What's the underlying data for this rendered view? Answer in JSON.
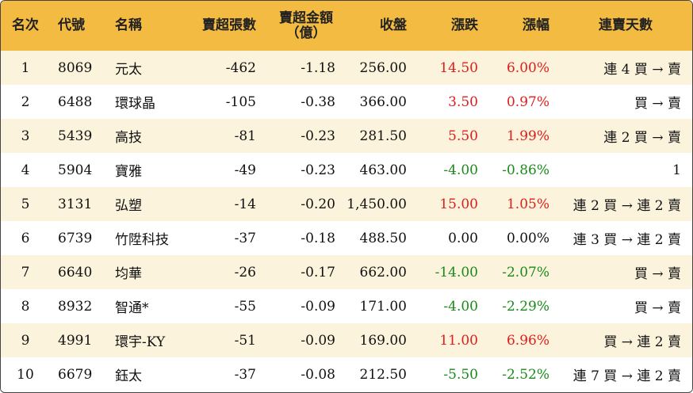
{
  "headers": {
    "rank": "名次",
    "code": "代號",
    "name": "名稱",
    "net_sell_lots": "賣超張數",
    "net_sell_amount_line1": "賣超金額",
    "net_sell_amount_line2": "（億）",
    "close": "收盤",
    "change": "漲跌",
    "pct": "漲幅",
    "streak": "連賣天數"
  },
  "colors": {
    "header_bg": "#f4bb42",
    "odd_row_bg": "#fcf3dc",
    "up": "#e01c1c",
    "down": "#1a8a1a"
  },
  "rows": [
    {
      "rank": "1",
      "code": "8069",
      "name": "元太",
      "lots": "-462",
      "amount": "-1.18",
      "close": "256.00",
      "change": "14.50",
      "pct": "6.00%",
      "dir": "up",
      "streak": "連 4 買 → 賣"
    },
    {
      "rank": "2",
      "code": "6488",
      "name": "環球晶",
      "lots": "-105",
      "amount": "-0.38",
      "close": "366.00",
      "change": "3.50",
      "pct": "0.97%",
      "dir": "up",
      "streak": "買 → 賣"
    },
    {
      "rank": "3",
      "code": "5439",
      "name": "高技",
      "lots": "-81",
      "amount": "-0.23",
      "close": "281.50",
      "change": "5.50",
      "pct": "1.99%",
      "dir": "up",
      "streak": "連 2 買 → 賣"
    },
    {
      "rank": "4",
      "code": "5904",
      "name": "寶雅",
      "lots": "-49",
      "amount": "-0.23",
      "close": "463.00",
      "change": "-4.00",
      "pct": "-0.86%",
      "dir": "down",
      "streak": "1"
    },
    {
      "rank": "5",
      "code": "3131",
      "name": "弘塑",
      "lots": "-14",
      "amount": "-0.20",
      "close": "1,450.00",
      "change": "15.00",
      "pct": "1.05%",
      "dir": "up",
      "streak": "連 2 買 → 連 2 賣"
    },
    {
      "rank": "6",
      "code": "6739",
      "name": "竹陞科技",
      "lots": "-37",
      "amount": "-0.18",
      "close": "488.50",
      "change": "0.00",
      "pct": "0.00%",
      "dir": "flat",
      "streak": "連 3 買 → 連 2 賣"
    },
    {
      "rank": "7",
      "code": "6640",
      "name": "均華",
      "lots": "-26",
      "amount": "-0.17",
      "close": "662.00",
      "change": "-14.00",
      "pct": "-2.07%",
      "dir": "down",
      "streak": "買 → 賣"
    },
    {
      "rank": "8",
      "code": "8932",
      "name": "智通*",
      "lots": "-55",
      "amount": "-0.09",
      "close": "171.00",
      "change": "-4.00",
      "pct": "-2.29%",
      "dir": "down",
      "streak": "買 → 賣"
    },
    {
      "rank": "9",
      "code": "4991",
      "name": "環宇-KY",
      "lots": "-51",
      "amount": "-0.09",
      "close": "169.00",
      "change": "11.00",
      "pct": "6.96%",
      "dir": "up",
      "streak": "買 → 連 2 賣"
    },
    {
      "rank": "10",
      "code": "6679",
      "name": "鈺太",
      "lots": "-37",
      "amount": "-0.08",
      "close": "212.50",
      "change": "-5.50",
      "pct": "-2.52%",
      "dir": "down",
      "streak": "連 7 買 → 連 2 賣"
    }
  ]
}
